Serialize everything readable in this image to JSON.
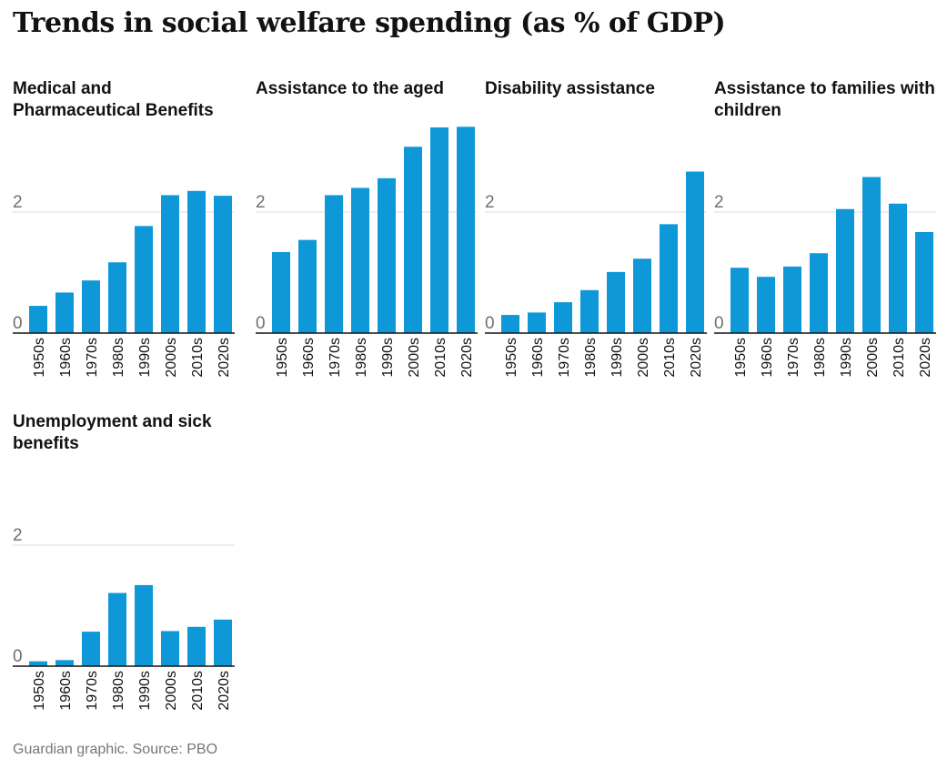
{
  "title": "Trends in social welfare spending (as % of GDP)",
  "source": "Guardian graphic. Source: PBO",
  "colors": {
    "bar": "#0e98d8",
    "grid": "#dcdcdc",
    "axis": "#121212"
  },
  "chart_data": [
    {
      "type": "bar",
      "title": "Medical and Pharmaceutical Benefits",
      "categories": [
        "1950s",
        "1960s",
        "1970s",
        "1980s",
        "1990s",
        "2000s",
        "2010s",
        "2020s"
      ],
      "values": [
        0.45,
        0.67,
        0.87,
        1.17,
        1.77,
        2.28,
        2.35,
        2.27
      ],
      "ylim": [
        0,
        3.4
      ],
      "yticks": [
        {
          "value": 0,
          "label": "0"
        },
        {
          "value": 2,
          "label": "2"
        }
      ]
    },
    {
      "type": "bar",
      "title": "Assistance to the aged",
      "categories": [
        "1950s",
        "1960s",
        "1970s",
        "1980s",
        "1990s",
        "2000s",
        "2010s",
        "2020s"
      ],
      "values": [
        1.34,
        1.54,
        2.28,
        2.4,
        2.56,
        3.08,
        3.4,
        3.41
      ],
      "ylim": [
        0,
        3.4
      ],
      "yticks": [
        {
          "value": 0,
          "label": "0"
        },
        {
          "value": 2,
          "label": "2"
        }
      ]
    },
    {
      "type": "bar",
      "title": "Disability assistance",
      "categories": [
        "1950s",
        "1960s",
        "1970s",
        "1980s",
        "1990s",
        "2000s",
        "2010s",
        "2020s"
      ],
      "values": [
        0.3,
        0.34,
        0.51,
        0.71,
        1.01,
        1.23,
        1.8,
        2.67
      ],
      "ylim": [
        0,
        3.4
      ],
      "yticks": [
        {
          "value": 0,
          "label": "0"
        },
        {
          "value": 2,
          "label": "2"
        }
      ]
    },
    {
      "type": "bar",
      "title": "Assistance to families with children",
      "categories": [
        "1950s",
        "1960s",
        "1970s",
        "1980s",
        "1990s",
        "2000s",
        "2010s",
        "2020s"
      ],
      "values": [
        1.08,
        0.93,
        1.1,
        1.32,
        2.05,
        2.58,
        2.14,
        1.67
      ],
      "ylim": [
        0,
        3.4
      ],
      "yticks": [
        {
          "value": 0,
          "label": "0"
        },
        {
          "value": 2,
          "label": "2"
        }
      ]
    },
    {
      "type": "bar",
      "title": "Unemployment and sick benefits",
      "categories": [
        "1950s",
        "1960s",
        "1970s",
        "1980s",
        "1990s",
        "2000s",
        "2010s",
        "2020s"
      ],
      "values": [
        0.08,
        0.1,
        0.57,
        1.21,
        1.34,
        0.58,
        0.65,
        0.77
      ],
      "ylim": [
        0,
        3.4
      ],
      "yticks": [
        {
          "value": 0,
          "label": "0"
        },
        {
          "value": 2,
          "label": "2"
        }
      ]
    }
  ]
}
